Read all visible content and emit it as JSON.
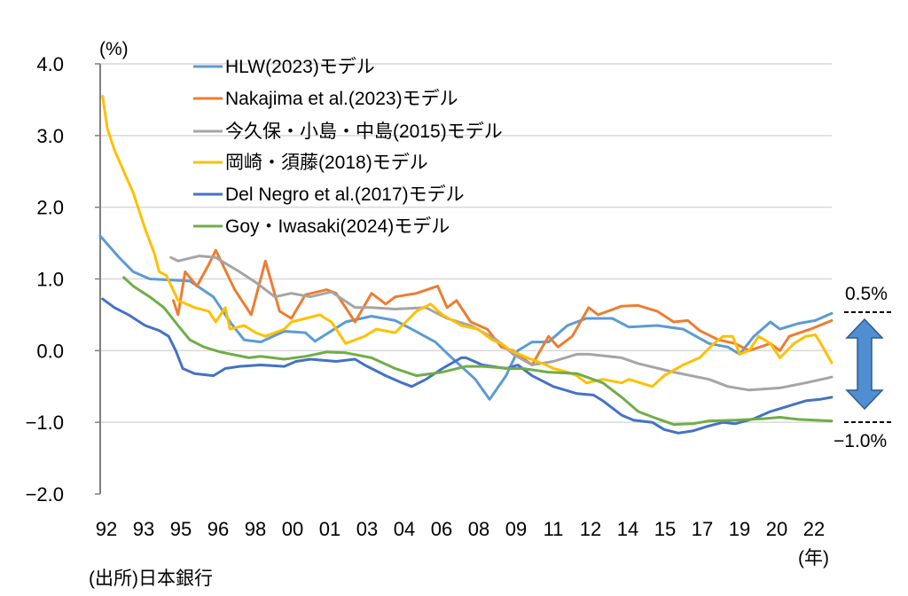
{
  "chart_data": {
    "type": "line",
    "title": "",
    "ylabel": "(%)",
    "xlabel": "(年)",
    "source": "(出所)日本銀行",
    "ylim": [
      -2.0,
      4.0
    ],
    "xlim": [
      1991.9,
      2022.9
    ],
    "yticks": [
      "4.0",
      "3.0",
      "2.0",
      "1.0",
      "0.0",
      "−1.0",
      "−2.0"
    ],
    "ytick_values": [
      4,
      3,
      2,
      1,
      0,
      -1,
      -2
    ],
    "xticks": [
      "92",
      "93",
      "95",
      "96",
      "98",
      "00",
      "01",
      "03",
      "04",
      "06",
      "08",
      "09",
      "11",
      "12",
      "14",
      "15",
      "17",
      "19",
      "20",
      "22"
    ],
    "grid": true,
    "legend_position": "top-center",
    "annotations": {
      "upper": "0.5%",
      "lower": "−1.0%",
      "range_upper": 0.5,
      "range_lower": -1.0
    },
    "series": [
      {
        "name": "HLW(2023)モデル",
        "color": "#5B9BD5",
        "points": [
          [
            1991.9,
            1.6
          ],
          [
            1992.7,
            1.3
          ],
          [
            1993.3,
            1.1
          ],
          [
            1994.0,
            1.0
          ],
          [
            1995.2,
            0.98
          ],
          [
            1995.7,
            0.97
          ],
          [
            1996.7,
            0.75
          ],
          [
            1997.4,
            0.4
          ],
          [
            1998.0,
            0.15
          ],
          [
            1998.7,
            0.12
          ],
          [
            1999.7,
            0.27
          ],
          [
            2000.6,
            0.25
          ],
          [
            2001.0,
            0.13
          ],
          [
            2002.3,
            0.4
          ],
          [
            2003.4,
            0.48
          ],
          [
            2004.4,
            0.42
          ],
          [
            2005.1,
            0.3
          ],
          [
            2006.1,
            0.12
          ],
          [
            2006.8,
            -0.1
          ],
          [
            2007.8,
            -0.4
          ],
          [
            2008.4,
            -0.68
          ],
          [
            2009.1,
            -0.35
          ],
          [
            2009.6,
            0.0
          ],
          [
            2010.2,
            0.12
          ],
          [
            2010.9,
            0.12
          ],
          [
            2011.7,
            0.35
          ],
          [
            2012.5,
            0.45
          ],
          [
            2013.6,
            0.45
          ],
          [
            2014.3,
            0.33
          ],
          [
            2015.5,
            0.35
          ],
          [
            2016.6,
            0.3
          ],
          [
            2017.7,
            0.1
          ],
          [
            2018.5,
            0.05
          ],
          [
            2019.0,
            -0.05
          ],
          [
            2019.6,
            0.2
          ],
          [
            2020.3,
            0.4
          ],
          [
            2020.7,
            0.3
          ],
          [
            2021.5,
            0.38
          ],
          [
            2022.2,
            0.42
          ],
          [
            2022.9,
            0.52
          ]
        ]
      },
      {
        "name": "Nakajima et al.(2023)モデル",
        "color": "#ED7D31",
        "points": [
          [
            1995.0,
            0.7
          ],
          [
            1995.2,
            0.5
          ],
          [
            1995.5,
            1.1
          ],
          [
            1996.0,
            0.9
          ],
          [
            1996.5,
            1.2
          ],
          [
            1996.8,
            1.4
          ],
          [
            1997.6,
            0.85
          ],
          [
            1998.3,
            0.5
          ],
          [
            1998.9,
            1.25
          ],
          [
            1999.5,
            0.55
          ],
          [
            2000.0,
            0.45
          ],
          [
            2000.6,
            0.78
          ],
          [
            2001.5,
            0.85
          ],
          [
            2001.9,
            0.8
          ],
          [
            2002.7,
            0.4
          ],
          [
            2003.4,
            0.8
          ],
          [
            2004.0,
            0.65
          ],
          [
            2004.4,
            0.75
          ],
          [
            2005.3,
            0.8
          ],
          [
            2006.2,
            0.9
          ],
          [
            2006.6,
            0.6
          ],
          [
            2007.0,
            0.7
          ],
          [
            2007.6,
            0.4
          ],
          [
            2008.3,
            0.3
          ],
          [
            2008.9,
            0.05
          ],
          [
            2009.4,
            0.0
          ],
          [
            2010.2,
            -0.2
          ],
          [
            2010.9,
            0.2
          ],
          [
            2011.3,
            0.05
          ],
          [
            2011.9,
            0.2
          ],
          [
            2012.6,
            0.6
          ],
          [
            2013.0,
            0.5
          ],
          [
            2014.0,
            0.62
          ],
          [
            2014.7,
            0.63
          ],
          [
            2015.5,
            0.55
          ],
          [
            2016.2,
            0.4
          ],
          [
            2016.8,
            0.42
          ],
          [
            2017.3,
            0.28
          ],
          [
            2018.1,
            0.15
          ],
          [
            2018.8,
            0.1
          ],
          [
            2019.4,
            0.0
          ],
          [
            2020.3,
            0.1
          ],
          [
            2020.7,
            0.0
          ],
          [
            2021.1,
            0.2
          ],
          [
            2022.0,
            0.3
          ],
          [
            2022.9,
            0.42
          ]
        ]
      },
      {
        "name": "今久保・小島・中島(2015)モデル",
        "color": "#A5A5A5",
        "points": [
          [
            1994.9,
            1.3
          ],
          [
            1995.2,
            1.25
          ],
          [
            1996.1,
            1.32
          ],
          [
            1996.8,
            1.3
          ],
          [
            1997.8,
            1.1
          ],
          [
            1998.5,
            0.95
          ],
          [
            1999.3,
            0.75
          ],
          [
            2000.0,
            0.8
          ],
          [
            2000.8,
            0.75
          ],
          [
            2001.7,
            0.82
          ],
          [
            2002.7,
            0.6
          ],
          [
            2003.4,
            0.6
          ],
          [
            2004.4,
            0.58
          ],
          [
            2005.7,
            0.6
          ],
          [
            2006.6,
            0.45
          ],
          [
            2007.6,
            0.35
          ],
          [
            2008.7,
            0.15
          ],
          [
            2009.4,
            -0.05
          ],
          [
            2010.2,
            -0.2
          ],
          [
            2011.1,
            -0.15
          ],
          [
            2012.1,
            -0.05
          ],
          [
            2012.6,
            -0.05
          ],
          [
            2014.0,
            -0.1
          ],
          [
            2014.7,
            -0.18
          ],
          [
            2016.2,
            -0.3
          ],
          [
            2017.7,
            -0.4
          ],
          [
            2018.5,
            -0.5
          ],
          [
            2019.4,
            -0.55
          ],
          [
            2020.7,
            -0.52
          ],
          [
            2021.8,
            -0.45
          ],
          [
            2022.9,
            -0.37
          ]
        ]
      },
      {
        "name": "岡崎・須藤(2018)モデル",
        "color": "#FFC000",
        "points": [
          [
            1992.0,
            3.55
          ],
          [
            1992.2,
            3.1
          ],
          [
            1992.5,
            2.8
          ],
          [
            1992.9,
            2.5
          ],
          [
            1993.3,
            2.2
          ],
          [
            1993.5,
            2.0
          ],
          [
            1993.8,
            1.7
          ],
          [
            1994.2,
            1.35
          ],
          [
            1994.4,
            1.1
          ],
          [
            1994.7,
            1.05
          ],
          [
            1995.2,
            0.7
          ],
          [
            1995.9,
            0.6
          ],
          [
            1996.5,
            0.55
          ],
          [
            1996.8,
            0.4
          ],
          [
            1997.2,
            0.6
          ],
          [
            1997.4,
            0.3
          ],
          [
            1998.0,
            0.35
          ],
          [
            1998.5,
            0.25
          ],
          [
            1998.9,
            0.2
          ],
          [
            1999.7,
            0.3
          ],
          [
            2000.0,
            0.4
          ],
          [
            2000.6,
            0.45
          ],
          [
            2001.2,
            0.5
          ],
          [
            2001.7,
            0.4
          ],
          [
            2002.3,
            0.1
          ],
          [
            2003.1,
            0.2
          ],
          [
            2003.6,
            0.3
          ],
          [
            2004.4,
            0.25
          ],
          [
            2004.7,
            0.35
          ],
          [
            2005.3,
            0.55
          ],
          [
            2005.9,
            0.65
          ],
          [
            2006.4,
            0.5
          ],
          [
            2007.2,
            0.35
          ],
          [
            2007.9,
            0.3
          ],
          [
            2008.5,
            0.15
          ],
          [
            2008.9,
            0.1
          ],
          [
            2009.3,
            0.0
          ],
          [
            2010.0,
            -0.1
          ],
          [
            2010.8,
            -0.2
          ],
          [
            2011.1,
            -0.25
          ],
          [
            2011.7,
            -0.3
          ],
          [
            2012.1,
            -0.35
          ],
          [
            2012.5,
            -0.45
          ],
          [
            2013.2,
            -0.4
          ],
          [
            2014.0,
            -0.45
          ],
          [
            2014.3,
            -0.4
          ],
          [
            2015.3,
            -0.5
          ],
          [
            2015.8,
            -0.35
          ],
          [
            2016.6,
            -0.2
          ],
          [
            2017.3,
            -0.1
          ],
          [
            2017.9,
            0.1
          ],
          [
            2018.3,
            0.2
          ],
          [
            2018.7,
            0.2
          ],
          [
            2019.0,
            -0.05
          ],
          [
            2019.4,
            0.0
          ],
          [
            2019.8,
            0.2
          ],
          [
            2020.3,
            0.1
          ],
          [
            2020.7,
            -0.1
          ],
          [
            2021.3,
            0.1
          ],
          [
            2021.8,
            0.2
          ],
          [
            2022.2,
            0.22
          ],
          [
            2022.4,
            0.12
          ],
          [
            2022.9,
            -0.17
          ]
        ]
      },
      {
        "name": "Del Negro et al.(2017)モデル",
        "color": "#4472C4",
        "points": [
          [
            1992.0,
            0.72
          ],
          [
            1992.5,
            0.6
          ],
          [
            1993.1,
            0.5
          ],
          [
            1993.8,
            0.35
          ],
          [
            1994.4,
            0.28
          ],
          [
            1994.8,
            0.2
          ],
          [
            1995.1,
            0.0
          ],
          [
            1995.4,
            -0.25
          ],
          [
            1995.9,
            -0.32
          ],
          [
            1996.7,
            -0.35
          ],
          [
            1997.2,
            -0.25
          ],
          [
            1997.8,
            -0.22
          ],
          [
            1998.7,
            -0.2
          ],
          [
            1999.7,
            -0.22
          ],
          [
            2000.2,
            -0.15
          ],
          [
            2000.8,
            -0.12
          ],
          [
            2001.9,
            -0.15
          ],
          [
            2002.7,
            -0.12
          ],
          [
            2003.1,
            -0.2
          ],
          [
            2004.0,
            -0.35
          ],
          [
            2004.7,
            -0.45
          ],
          [
            2005.1,
            -0.5
          ],
          [
            2005.7,
            -0.4
          ],
          [
            2006.4,
            -0.25
          ],
          [
            2007.2,
            -0.1
          ],
          [
            2007.4,
            -0.1
          ],
          [
            2008.1,
            -0.2
          ],
          [
            2009.1,
            -0.25
          ],
          [
            2009.6,
            -0.2
          ],
          [
            2010.2,
            -0.35
          ],
          [
            2011.1,
            -0.5
          ],
          [
            2012.1,
            -0.6
          ],
          [
            2012.8,
            -0.62
          ],
          [
            2013.2,
            -0.7
          ],
          [
            2014.0,
            -0.9
          ],
          [
            2014.5,
            -0.97
          ],
          [
            2015.3,
            -1.0
          ],
          [
            2015.8,
            -1.1
          ],
          [
            2016.4,
            -1.15
          ],
          [
            2017.0,
            -1.12
          ],
          [
            2017.7,
            -1.05
          ],
          [
            2018.3,
            -1.0
          ],
          [
            2018.8,
            -1.02
          ],
          [
            2019.6,
            -0.95
          ],
          [
            2020.3,
            -0.85
          ],
          [
            2021.1,
            -0.77
          ],
          [
            2021.8,
            -0.7
          ],
          [
            2022.4,
            -0.68
          ],
          [
            2022.9,
            -0.65
          ]
        ]
      },
      {
        "name": "Goy・Iwasaki(2024)モデル",
        "color": "#70AD47",
        "points": [
          [
            1992.9,
            1.02
          ],
          [
            1993.3,
            0.9
          ],
          [
            1994.0,
            0.75
          ],
          [
            1994.6,
            0.6
          ],
          [
            1995.2,
            0.35
          ],
          [
            1995.7,
            0.15
          ],
          [
            1996.3,
            0.05
          ],
          [
            1997.0,
            -0.02
          ],
          [
            1998.2,
            -0.1
          ],
          [
            1998.7,
            -0.08
          ],
          [
            1999.7,
            -0.12
          ],
          [
            2000.6,
            -0.08
          ],
          [
            2001.5,
            -0.02
          ],
          [
            2002.3,
            -0.03
          ],
          [
            2003.4,
            -0.1
          ],
          [
            2004.4,
            -0.25
          ],
          [
            2005.3,
            -0.35
          ],
          [
            2006.4,
            -0.3
          ],
          [
            2007.4,
            -0.22
          ],
          [
            2008.1,
            -0.22
          ],
          [
            2009.3,
            -0.25
          ],
          [
            2009.8,
            -0.25
          ],
          [
            2010.9,
            -0.3
          ],
          [
            2012.1,
            -0.32
          ],
          [
            2013.2,
            -0.45
          ],
          [
            2014.0,
            -0.65
          ],
          [
            2014.7,
            -0.85
          ],
          [
            2015.5,
            -0.95
          ],
          [
            2016.2,
            -1.03
          ],
          [
            2017.0,
            -1.02
          ],
          [
            2017.7,
            -0.98
          ],
          [
            2018.8,
            -0.97
          ],
          [
            2020.0,
            -0.95
          ],
          [
            2020.7,
            -0.93
          ],
          [
            2021.5,
            -0.96
          ],
          [
            2022.9,
            -0.98
          ]
        ]
      }
    ]
  }
}
